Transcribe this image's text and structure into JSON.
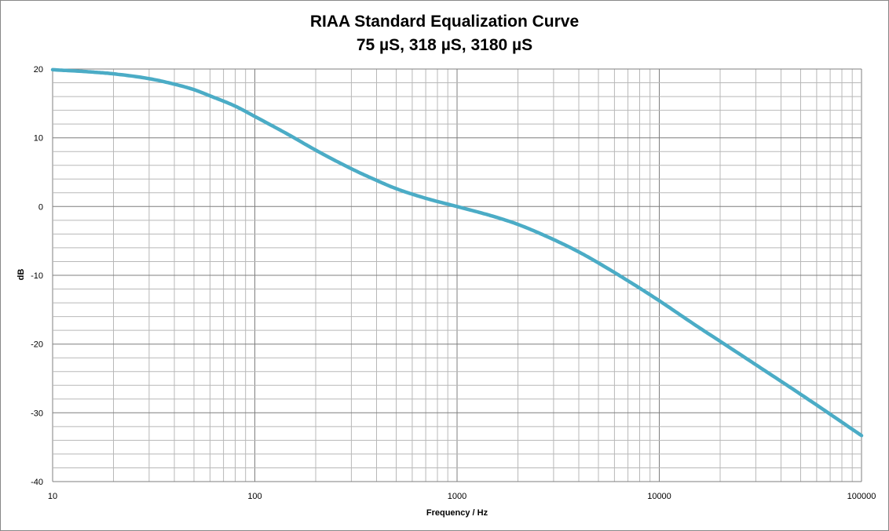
{
  "chart_data": {
    "type": "line",
    "title": "RIAA Standard Equalization Curve",
    "subtitle": "75 µS, 318 µS, 3180 µS",
    "xlabel": "Frequency / Hz",
    "ylabel": "dB",
    "xscale": "log",
    "xlim": [
      10,
      100000
    ],
    "ylim": [
      -40,
      20
    ],
    "xticks": [
      10,
      100,
      1000,
      10000,
      100000
    ],
    "xtick_labels": [
      "10",
      "100",
      "1000",
      "10000",
      "100000"
    ],
    "yticks": [
      20,
      10,
      0,
      -10,
      -20,
      -30,
      -40
    ],
    "ytick_labels": [
      "20",
      "10",
      "0",
      "-10",
      "-20",
      "-30",
      "-40"
    ],
    "grid": true,
    "legend": "none",
    "series": [
      {
        "color": "#4bacc6",
        "x": [
          10,
          15,
          20,
          30,
          40,
          50,
          60,
          80,
          100,
          150,
          200,
          300,
          400,
          500,
          700,
          1000,
          1500,
          2000,
          3000,
          4000,
          5000,
          7000,
          10000,
          15000,
          20000,
          30000,
          50000,
          70000,
          100000
        ],
        "y": [
          19.9,
          19.6,
          19.3,
          18.6,
          17.8,
          17.0,
          16.1,
          14.6,
          13.1,
          10.3,
          8.2,
          5.5,
          3.8,
          2.6,
          1.2,
          0.0,
          -1.4,
          -2.6,
          -4.8,
          -6.6,
          -8.2,
          -10.8,
          -13.7,
          -17.2,
          -19.6,
          -23.0,
          -27.3,
          -30.2,
          -33.3
        ]
      }
    ]
  }
}
